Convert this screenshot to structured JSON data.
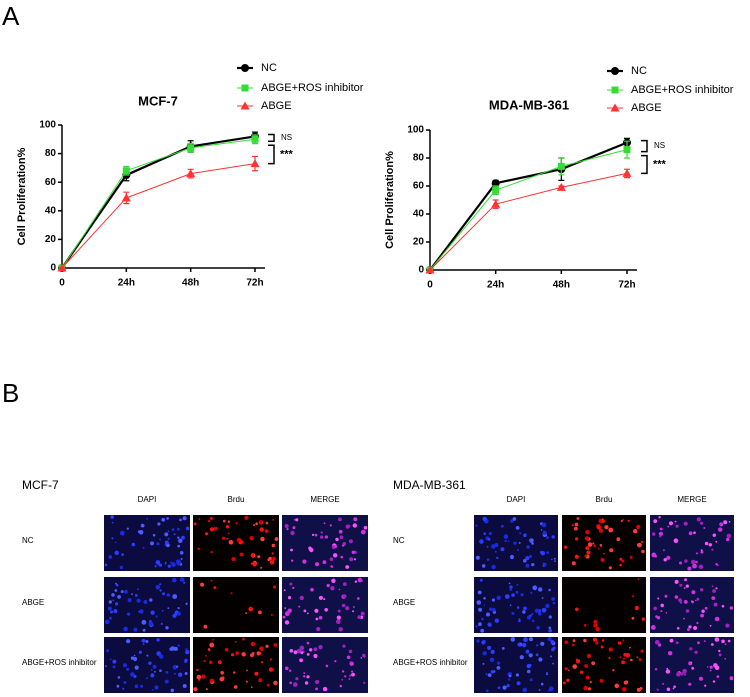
{
  "panel_a": {
    "label": "A"
  },
  "chart_data": [
    {
      "type": "line",
      "title": "MCF-7",
      "y_label": "Cell Proliferation%",
      "categories": [
        "0",
        "24h",
        "48h",
        "72h"
      ],
      "series": [
        {
          "name": "NC",
          "color": "#000000",
          "marker": "circle",
          "values": [
            0,
            65,
            85,
            92
          ],
          "errors": [
            0,
            4,
            4,
            3
          ]
        },
        {
          "name": "ABGE+ROS inhibitor",
          "color": "#33dd33",
          "marker": "square",
          "values": [
            0,
            68,
            84,
            90
          ],
          "errors": [
            0,
            3,
            3,
            3
          ]
        },
        {
          "name": "ABGE",
          "color": "#ff3333",
          "marker": "triangle",
          "values": [
            0,
            49,
            66,
            73
          ],
          "errors": [
            0,
            4,
            3,
            5
          ]
        }
      ],
      "ylim": [
        0,
        100
      ],
      "yticks": [
        0,
        20,
        40,
        60,
        80,
        100
      ],
      "annotations": [
        "NS",
        "***"
      ]
    },
    {
      "type": "line",
      "title": "MDA-MB-361",
      "y_label": "Cell Proliferation%",
      "categories": [
        "0",
        "24h",
        "48h",
        "72h"
      ],
      "series": [
        {
          "name": "NC",
          "color": "#000000",
          "marker": "circle",
          "values": [
            0,
            62,
            72,
            91
          ],
          "errors": [
            0,
            2,
            8,
            3
          ]
        },
        {
          "name": "ABGE+ROS inhibitor",
          "color": "#33dd33",
          "marker": "square",
          "values": [
            0,
            57,
            74,
            86
          ],
          "errors": [
            0,
            3,
            6,
            6
          ]
        },
        {
          "name": "ABGE",
          "color": "#ff3333",
          "marker": "triangle",
          "values": [
            0,
            47,
            59,
            69
          ],
          "errors": [
            0,
            3,
            1,
            3
          ]
        }
      ],
      "ylim": [
        0,
        100
      ],
      "yticks": [
        0,
        20,
        40,
        60,
        80,
        100
      ],
      "annotations": [
        "NS",
        "***"
      ]
    }
  ],
  "panel_b": {
    "label": "B",
    "groups": [
      {
        "title": "MCF-7",
        "columns": [
          "DAPI",
          "Brdu",
          "MERGE"
        ],
        "rows": [
          "NC",
          "ABGE",
          "ABGE+ROS inhibitor"
        ]
      },
      {
        "title": "MDA-MB-361",
        "columns": [
          "DAPI",
          "Brdu",
          "MERGE"
        ],
        "rows": [
          "NC",
          "ABGE",
          "ABGE+ROS inhibitor"
        ]
      }
    ]
  }
}
